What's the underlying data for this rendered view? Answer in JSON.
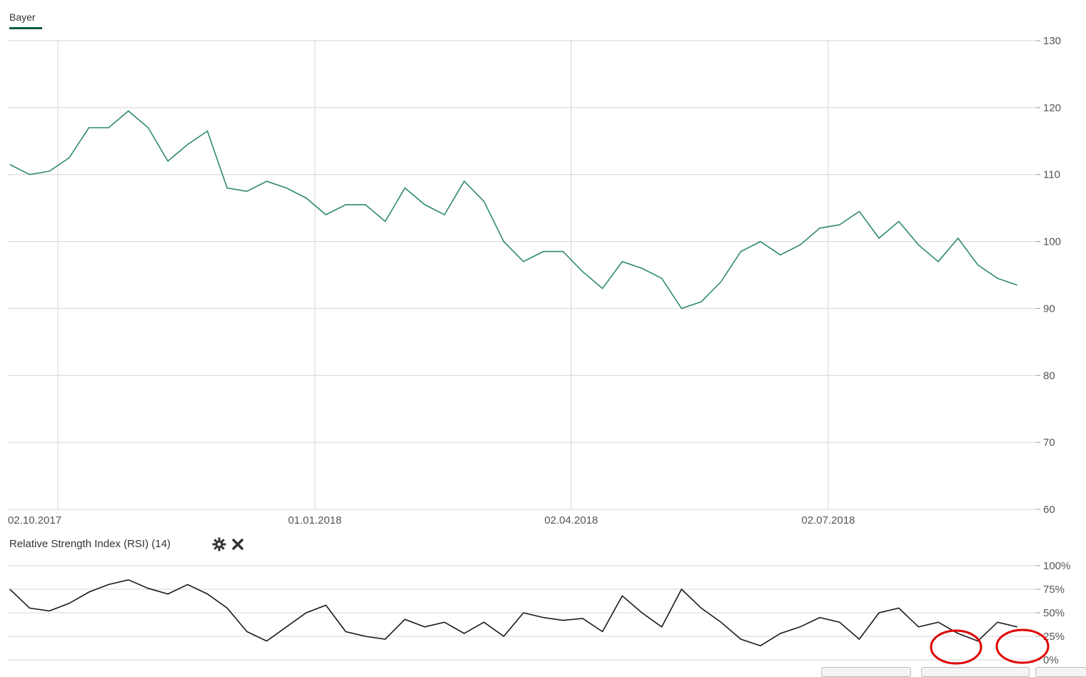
{
  "legend": {
    "series_name": "Bayer",
    "color": "#0d5c3f"
  },
  "rsi": {
    "title": "Relative Strength Index (RSI) (14)",
    "settings_icon": "gear-icon",
    "close_icon": "close-icon"
  },
  "colors": {
    "price_line": "#2e8b6a",
    "rsi_line": "#1a1a1a",
    "grid": "#d4d4d4",
    "highlight_circle": "#e00000"
  },
  "chart_data": [
    {
      "type": "line",
      "title": "",
      "xlabel": "",
      "ylabel": "",
      "ylim": [
        60,
        130
      ],
      "yticks": [
        130,
        120,
        110,
        100,
        90,
        80,
        70,
        60
      ],
      "ytick_labels": [
        "130",
        "120",
        "110",
        "100",
        "90",
        "80",
        "70",
        "60"
      ],
      "xticks": [
        "02.10.2017",
        "01.01.2018",
        "02.04.2018",
        "02.07.2018"
      ],
      "grid": true,
      "legend": "top-left",
      "x": [
        "2017-09-15",
        "2017-09-22",
        "2017-09-29",
        "2017-10-06",
        "2017-10-13",
        "2017-10-20",
        "2017-10-27",
        "2017-11-03",
        "2017-11-10",
        "2017-11-17",
        "2017-11-24",
        "2017-12-01",
        "2017-12-08",
        "2017-12-15",
        "2017-12-22",
        "2017-12-29",
        "2018-01-05",
        "2018-01-12",
        "2018-01-19",
        "2018-01-26",
        "2018-02-02",
        "2018-02-09",
        "2018-02-16",
        "2018-02-23",
        "2018-03-02",
        "2018-03-09",
        "2018-03-16",
        "2018-03-23",
        "2018-03-30",
        "2018-04-06",
        "2018-04-13",
        "2018-04-20",
        "2018-04-27",
        "2018-05-04",
        "2018-05-11",
        "2018-05-18",
        "2018-05-25",
        "2018-06-01",
        "2018-06-08",
        "2018-06-15",
        "2018-06-22",
        "2018-06-29",
        "2018-07-06",
        "2018-07-13",
        "2018-07-20",
        "2018-07-27",
        "2018-08-03",
        "2018-08-10",
        "2018-08-17",
        "2018-08-24",
        "2018-08-31",
        "2018-09-07"
      ],
      "series": [
        {
          "name": "Bayer",
          "values": [
            111.5,
            110.0,
            110.5,
            112.5,
            117.0,
            117.0,
            119.5,
            117.0,
            112.0,
            114.5,
            116.5,
            108.0,
            107.5,
            109.0,
            108.0,
            106.5,
            104.0,
            105.5,
            105.5,
            103.0,
            108.0,
            105.5,
            104.0,
            109.0,
            106.0,
            100.0,
            97.0,
            98.5,
            98.5,
            95.5,
            93.0,
            97.0,
            96.0,
            94.5,
            90.0,
            91.0,
            94.0,
            98.5,
            100.0,
            98.0,
            99.5,
            102.0,
            102.5,
            104.5,
            100.5,
            103.0,
            99.5,
            97.0,
            100.5,
            96.5,
            94.5,
            93.5
          ]
        }
      ]
    },
    {
      "type": "line",
      "title": "Relative Strength Index (RSI) (14)",
      "ylim": [
        0,
        100
      ],
      "yticks": [
        100,
        75,
        50,
        25,
        0
      ],
      "ytick_labels": [
        "100%",
        "75%",
        "50%",
        "25%",
        "0%"
      ],
      "grid": true,
      "series": [
        {
          "name": "RSI (14)",
          "values": [
            75,
            55,
            52,
            60,
            72,
            80,
            85,
            76,
            70,
            80,
            70,
            55,
            30,
            20,
            35,
            50,
            58,
            30,
            25,
            22,
            43,
            35,
            40,
            28,
            40,
            25,
            50,
            45,
            42,
            44,
            30,
            68,
            50,
            35,
            75,
            55,
            40,
            22,
            15,
            28,
            35,
            45,
            40,
            22,
            50,
            55,
            35,
            40,
            28,
            20,
            40,
            35
          ]
        }
      ]
    }
  ]
}
